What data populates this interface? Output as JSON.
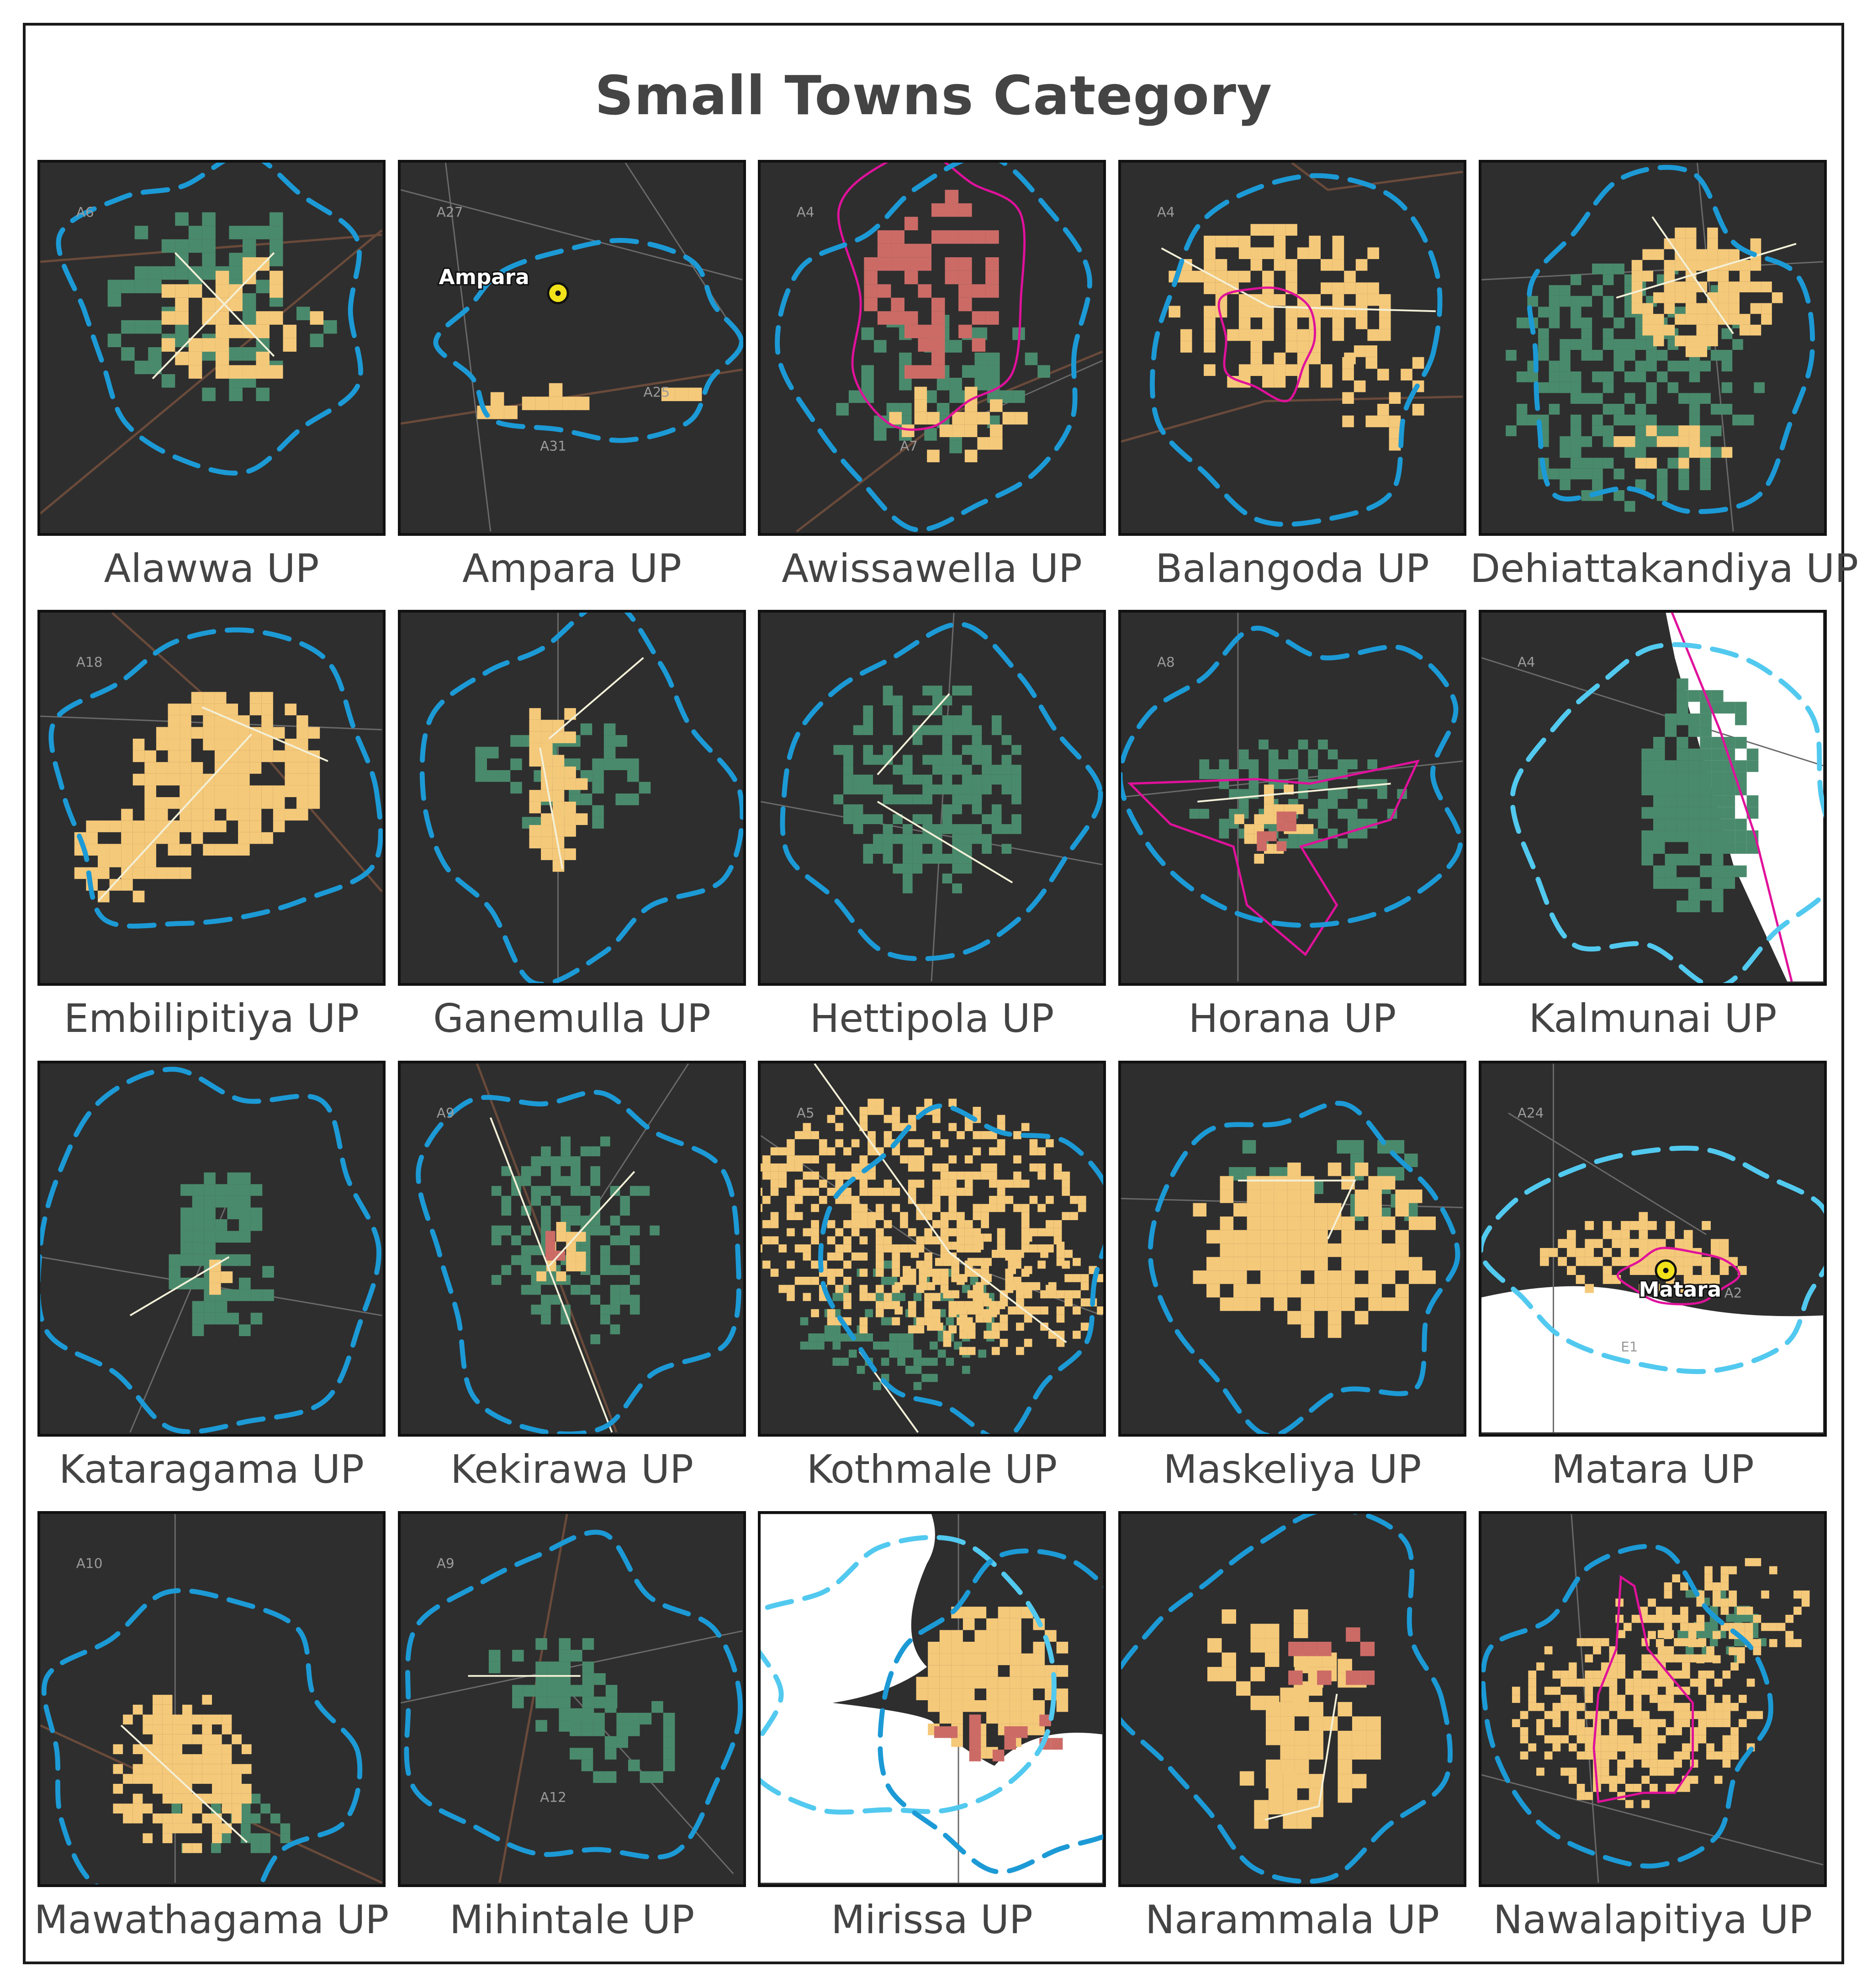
{
  "title": "Small Towns Category",
  "colors": {
    "background": "#2e2e2e",
    "sea": "#ffffff",
    "urban_low": "#f5c97a",
    "urban_high": "#cc6b66",
    "vegetation": "#4a8a6c",
    "buffer": "#1c9ad6",
    "buffer_light": "#52c9ef",
    "boundary": "#e0119b",
    "main_road": "#6a4a3a",
    "minor_road": "#6a6a6a",
    "town_road": "#f3f0d8"
  },
  "panels": [
    {
      "name": "Alawwa UP",
      "roads": [
        "A6"
      ]
    },
    {
      "name": "Ampara UP",
      "roads": [
        "A27",
        "A31",
        "A25"
      ],
      "place_label": "Ampara"
    },
    {
      "name": "Awissawella UP",
      "roads": [
        "A4",
        "A7"
      ]
    },
    {
      "name": "Balangoda UP",
      "roads": [
        "A4"
      ]
    },
    {
      "name": "Dehiattakandiya UP",
      "roads": []
    },
    {
      "name": "Embilipitiya UP",
      "roads": [
        "A18"
      ]
    },
    {
      "name": "Ganemulla UP",
      "roads": []
    },
    {
      "name": "Hettipola UP",
      "roads": []
    },
    {
      "name": "Horana UP",
      "roads": [
        "A8"
      ]
    },
    {
      "name": "Kalmunai UP",
      "roads": [
        "A4"
      ]
    },
    {
      "name": "Kataragama UP",
      "roads": []
    },
    {
      "name": "Kekirawa UP",
      "roads": [
        "A9"
      ]
    },
    {
      "name": "Kothmale UP",
      "roads": [
        "A5"
      ]
    },
    {
      "name": "Maskeliya UP",
      "roads": []
    },
    {
      "name": "Matara UP",
      "roads": [
        "A24",
        "E1",
        "A2"
      ],
      "place_label": "Matara"
    },
    {
      "name": "Mawathagama UP",
      "roads": [
        "A10"
      ]
    },
    {
      "name": "Mihintale UP",
      "roads": [
        "A9",
        "A12"
      ]
    },
    {
      "name": "Mirissa UP",
      "roads": []
    },
    {
      "name": "Narammala UP",
      "roads": []
    },
    {
      "name": "Nawalapitiya UP",
      "roads": []
    }
  ]
}
